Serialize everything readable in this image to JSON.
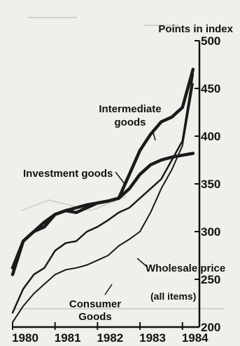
{
  "chart_data": {
    "type": "line",
    "title": "",
    "ylabel": "Points in index",
    "xlabel": "",
    "x": [
      1980.0,
      1980.25,
      1980.5,
      1980.75,
      1981.0,
      1981.25,
      1981.5,
      1981.75,
      1982.0,
      1982.25,
      1982.5,
      1982.75,
      1983.0,
      1983.25,
      1983.5,
      1983.75,
      1984.0,
      1984.25
    ],
    "x_ticks": [
      "1980",
      "1981",
      "1982",
      "1983",
      "1984"
    ],
    "y_ticks": [
      200,
      250,
      300,
      350,
      400,
      450,
      500
    ],
    "ylim": [
      200,
      500
    ],
    "xlim": [
      1980,
      1984.4
    ],
    "grid": false,
    "series": [
      {
        "name": "Intermediate goods",
        "values": [
          255,
          290,
          300,
          305,
          318,
          322,
          320,
          325,
          330,
          332,
          335,
          360,
          385,
          402,
          415,
          420,
          430,
          470
        ],
        "line_width": 4.5,
        "color": "#1a1a1a"
      },
      {
        "name": "Investment goods",
        "values": [
          262,
          290,
          300,
          310,
          318,
          322,
          325,
          328,
          330,
          332,
          335,
          345,
          360,
          370,
          375,
          378,
          380,
          382
        ],
        "line_width": 4.5,
        "color": "#1a1a1a"
      },
      {
        "name": "Wholesale price",
        "note": "(all items)",
        "values": [
          215,
          240,
          255,
          262,
          280,
          288,
          290,
          300,
          305,
          312,
          320,
          325,
          335,
          345,
          355,
          375,
          395,
          465
        ],
        "line_width": 2.5,
        "color": "#1a1a1a"
      },
      {
        "name": "Consumer Goods",
        "values": [
          205,
          222,
          235,
          245,
          255,
          260,
          262,
          265,
          270,
          275,
          285,
          292,
          300,
          320,
          345,
          365,
          390,
          455
        ],
        "line_width": 2,
        "color": "#1a1a1a"
      }
    ]
  }
}
